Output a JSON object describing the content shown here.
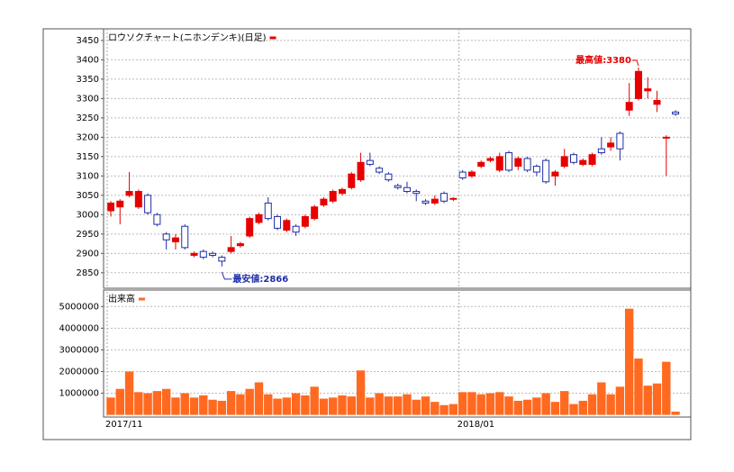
{
  "chart_data": [
    {
      "type": "candlestick",
      "title": "ロウソクチャート(ニホンデンキ)(日足)",
      "categories": [
        "2017/11",
        null,
        null,
        null,
        null,
        null,
        null,
        null,
        null,
        null,
        null,
        null,
        null,
        null,
        null,
        null,
        null,
        null,
        null,
        null,
        null,
        null,
        null,
        null,
        null,
        null,
        null,
        null,
        null,
        null,
        null,
        null,
        null,
        null,
        null,
        null,
        null,
        null,
        "2018/01",
        null,
        null,
        null,
        null,
        null,
        null,
        null,
        null,
        null,
        null,
        null,
        null,
        null,
        null,
        null,
        null,
        null,
        null,
        null,
        null,
        null,
        null,
        null
      ],
      "open": [
        3010,
        3020,
        3050,
        3020,
        3050,
        3000,
        2950,
        2930,
        2970,
        2895,
        2905,
        2900,
        2890,
        2905,
        2920,
        2945,
        2980,
        3030,
        2995,
        2960,
        2970,
        2970,
        2990,
        3025,
        3035,
        3055,
        3070,
        3090,
        3140,
        3120,
        3105,
        3075,
        3070,
        3060,
        3035,
        3030,
        3055,
        3040,
        3110,
        3100,
        3125,
        3140,
        3115,
        3160,
        3125,
        3145,
        3125,
        3140,
        3100,
        3125,
        3155,
        3130,
        3130,
        3170,
        3175,
        3210,
        3270,
        3300,
        3320,
        3285,
        3200,
        3265
      ],
      "high": [
        3035,
        3040,
        3110,
        3065,
        3055,
        3005,
        2955,
        2950,
        2975,
        2905,
        2910,
        2905,
        2895,
        2945,
        2930,
        2995,
        3005,
        3045,
        3000,
        2990,
        2975,
        3000,
        3025,
        3045,
        3065,
        3070,
        3110,
        3160,
        3160,
        3125,
        3110,
        3080,
        3085,
        3065,
        3040,
        3050,
        3060,
        3045,
        3115,
        3115,
        3140,
        3150,
        3160,
        3165,
        3150,
        3150,
        3130,
        3145,
        3115,
        3170,
        3160,
        3145,
        3160,
        3200,
        3200,
        3215,
        3340,
        3380,
        3355,
        3320,
        3205,
        3270
      ],
      "low": [
        2995,
        2975,
        3045,
        3015,
        3000,
        2970,
        2910,
        2910,
        2910,
        2890,
        2885,
        2890,
        2866,
        2900,
        2915,
        2940,
        2975,
        2985,
        2960,
        2955,
        2945,
        2965,
        2985,
        3020,
        3030,
        3050,
        3065,
        3085,
        3125,
        3105,
        3085,
        3065,
        3055,
        3035,
        3025,
        3025,
        3030,
        3035,
        3090,
        3095,
        3120,
        3135,
        3110,
        3110,
        3115,
        3110,
        3100,
        3080,
        3075,
        3120,
        3130,
        3125,
        3125,
        3155,
        3165,
        3140,
        3255,
        3295,
        3300,
        3265,
        3100,
        3255
      ],
      "close": [
        3030,
        3035,
        3060,
        3060,
        3005,
        2975,
        2935,
        2940,
        2915,
        2900,
        2890,
        2895,
        2880,
        2915,
        2925,
        2990,
        3000,
        2990,
        2965,
        2985,
        2955,
        2995,
        3020,
        3040,
        3060,
        3065,
        3105,
        3135,
        3130,
        3110,
        3090,
        3070,
        3060,
        3055,
        3030,
        3040,
        3035,
        3042,
        3095,
        3110,
        3135,
        3145,
        3150,
        3115,
        3145,
        3115,
        3110,
        3085,
        3110,
        3150,
        3135,
        3140,
        3155,
        3160,
        3185,
        3170,
        3290,
        3370,
        3325,
        3295,
        3200,
        3260
      ],
      "up_color": "#e60000",
      "down_color": "#1f2ea8",
      "ylim": [
        2810,
        3480
      ],
      "yticks": [
        2850,
        2900,
        2950,
        3000,
        3050,
        3100,
        3150,
        3200,
        3250,
        3300,
        3350,
        3400,
        3450
      ],
      "grid": true,
      "annotations": [
        {
          "text": "最高値:3380",
          "color": "#e60000"
        },
        {
          "text": "最安値:2866",
          "color": "#1f2ea8"
        }
      ]
    },
    {
      "type": "bar",
      "title": "出来高",
      "color": "#ff6a20",
      "values": [
        800000,
        1200000,
        2000000,
        1050000,
        1000000,
        1100000,
        1200000,
        800000,
        1000000,
        800000,
        900000,
        700000,
        650000,
        1100000,
        950000,
        1200000,
        1500000,
        950000,
        750000,
        800000,
        1000000,
        900000,
        1300000,
        750000,
        800000,
        900000,
        850000,
        2050000,
        800000,
        1000000,
        850000,
        850000,
        950000,
        700000,
        850000,
        600000,
        450000,
        500000,
        1050000,
        1050000,
        950000,
        1000000,
        1050000,
        850000,
        650000,
        700000,
        800000,
        1000000,
        600000,
        1100000,
        500000,
        650000,
        950000,
        1500000,
        950000,
        1300000,
        4900000,
        2600000,
        1350000,
        1450000,
        2450000,
        150000
      ],
      "ylim": [
        -100000,
        5760000
      ],
      "yticks": [
        1000000,
        2000000,
        3000000,
        4000000,
        5000000
      ],
      "grid": true
    }
  ]
}
